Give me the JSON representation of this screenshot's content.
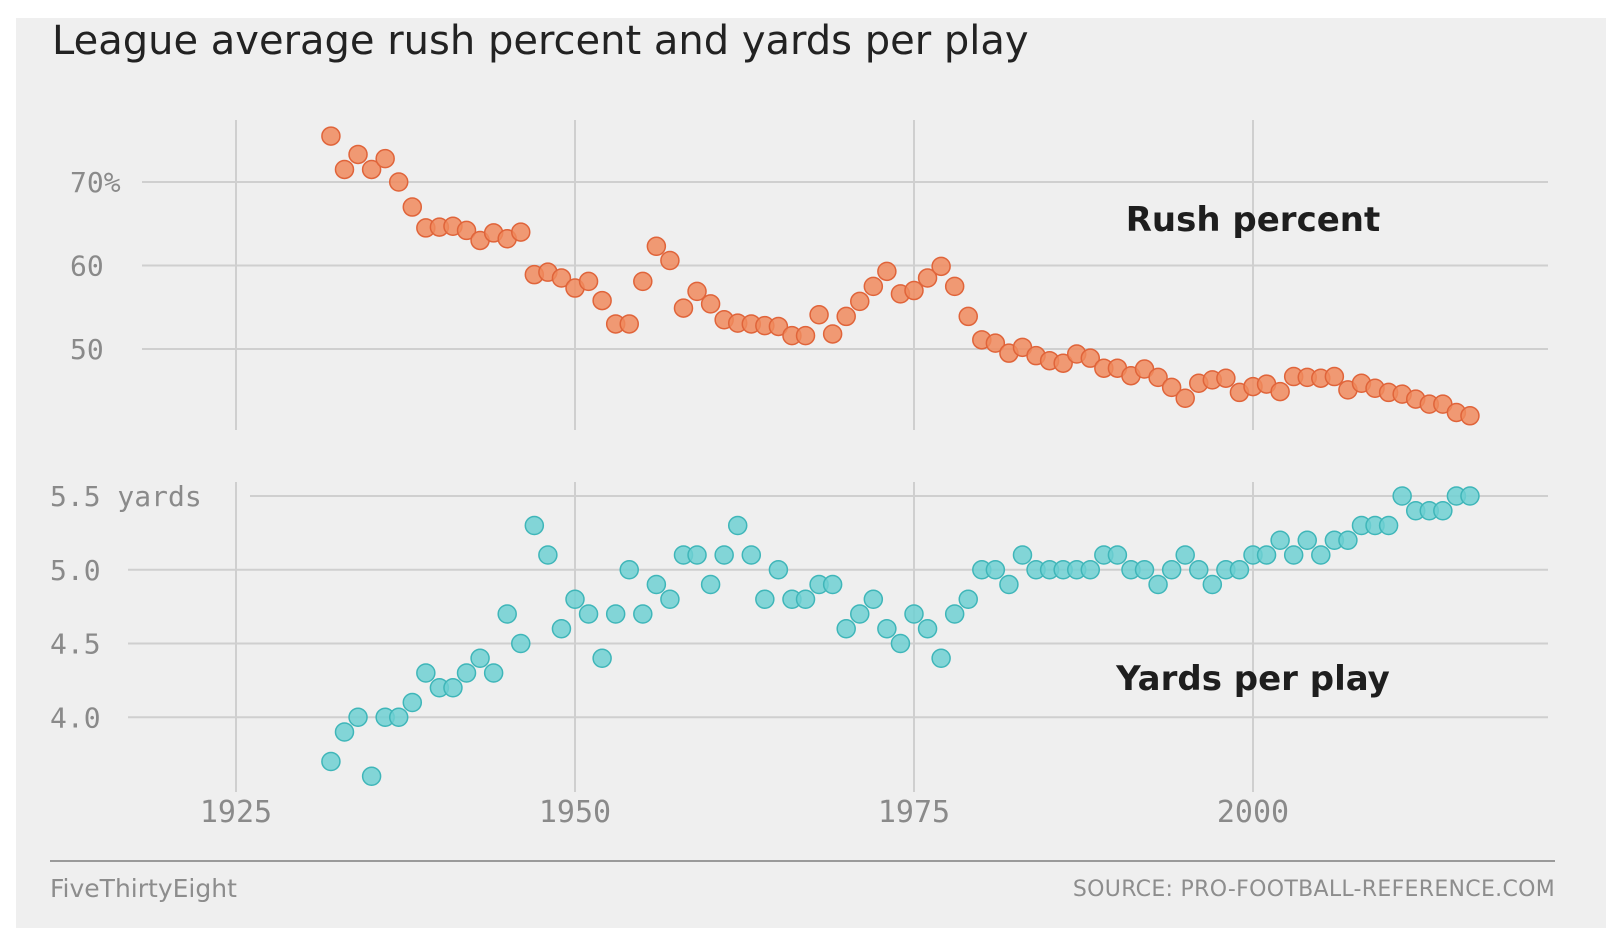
{
  "title": "League average rush percent and yards per play",
  "footer": {
    "brand": "FiveThirtyEight",
    "source": "SOURCE: PRO-FOOTBALL-REFERENCE.COM"
  },
  "colors": {
    "rush": "#f08a5d",
    "rush_stroke": "#e0643a",
    "yards": "#6fd0d2",
    "yards_stroke": "#3fb6b9",
    "grid": "#cfcfcf",
    "background": "#efefef"
  },
  "chart_data": [
    {
      "type": "scatter",
      "series_label": "Rush percent",
      "y_tick_labels": [
        "70%",
        "60",
        "50"
      ],
      "y_ticks": [
        70,
        60,
        50
      ],
      "ylim": [
        40.5,
        78
      ],
      "xlim": [
        1912,
        2022
      ],
      "x_ticks": [
        1925,
        1950,
        1975,
        2000
      ],
      "grid": true,
      "x": [
        1932,
        1933,
        1934,
        1935,
        1936,
        1937,
        1938,
        1939,
        1940,
        1941,
        1942,
        1943,
        1944,
        1945,
        1946,
        1947,
        1948,
        1949,
        1950,
        1951,
        1952,
        1953,
        1954,
        1955,
        1956,
        1957,
        1958,
        1959,
        1960,
        1961,
        1962,
        1963,
        1964,
        1965,
        1966,
        1967,
        1968,
        1969,
        1970,
        1971,
        1972,
        1973,
        1974,
        1975,
        1976,
        1977,
        1978,
        1979,
        1980,
        1981,
        1982,
        1983,
        1984,
        1985,
        1986,
        1987,
        1988,
        1989,
        1990,
        1991,
        1992,
        1993,
        1994,
        1995,
        1996,
        1997,
        1998,
        1999,
        2000,
        2001,
        2002,
        2003,
        2004,
        2005,
        2006,
        2007,
        2008,
        2009,
        2010,
        2011,
        2012,
        2013,
        2014,
        2015,
        2016
      ],
      "y": [
        75.5,
        71.5,
        73.3,
        71.5,
        72.8,
        70.0,
        67.0,
        64.5,
        64.6,
        64.7,
        64.2,
        63.0,
        63.9,
        63.2,
        64.0,
        58.9,
        59.2,
        58.5,
        57.3,
        58.1,
        55.8,
        53.0,
        53.0,
        58.1,
        62.3,
        60.6,
        54.9,
        56.9,
        55.4,
        53.5,
        53.1,
        53.0,
        52.8,
        52.7,
        51.6,
        51.6,
        54.1,
        51.8,
        53.9,
        55.7,
        57.5,
        59.3,
        56.6,
        57.0,
        58.5,
        59.9,
        57.5,
        53.9,
        51.1,
        50.7,
        49.5,
        50.2,
        49.2,
        48.6,
        48.3,
        49.4,
        48.9,
        47.7,
        47.7,
        46.8,
        47.6,
        46.6,
        45.4,
        44.1,
        45.9,
        46.3,
        46.5,
        44.8,
        45.5,
        45.8,
        44.9,
        46.7,
        46.6,
        46.5,
        46.7,
        45.1,
        45.9,
        45.3,
        44.8,
        44.6,
        44.0,
        43.4,
        43.4,
        42.4,
        42.0
      ]
    },
    {
      "type": "scatter",
      "series_label": "Yards per play",
      "y_tick_labels": [
        "5.5 yards",
        "5.0",
        "4.5",
        "4.0"
      ],
      "y_ticks": [
        5.5,
        5.0,
        4.5,
        4.0
      ],
      "ylim": [
        3.45,
        5.6
      ],
      "xlim": [
        1912,
        2022
      ],
      "x_ticks": [
        1925,
        1950,
        1975,
        2000
      ],
      "grid": true,
      "x": [
        1932,
        1933,
        1934,
        1935,
        1936,
        1937,
        1938,
        1939,
        1940,
        1941,
        1942,
        1943,
        1944,
        1945,
        1946,
        1947,
        1948,
        1949,
        1950,
        1951,
        1952,
        1953,
        1954,
        1955,
        1956,
        1957,
        1958,
        1959,
        1960,
        1961,
        1962,
        1963,
        1964,
        1965,
        1966,
        1967,
        1968,
        1969,
        1970,
        1971,
        1972,
        1973,
        1974,
        1975,
        1976,
        1977,
        1978,
        1979,
        1980,
        1981,
        1982,
        1983,
        1984,
        1985,
        1986,
        1987,
        1988,
        1989,
        1990,
        1991,
        1992,
        1993,
        1994,
        1995,
        1996,
        1997,
        1998,
        1999,
        2000,
        2001,
        2002,
        2003,
        2004,
        2005,
        2006,
        2007,
        2008,
        2009,
        2010,
        2011,
        2012,
        2013,
        2014,
        2015,
        2016
      ],
      "y": [
        3.7,
        3.9,
        4.0,
        3.6,
        4.0,
        4.0,
        4.1,
        4.3,
        4.2,
        4.2,
        4.3,
        4.4,
        4.3,
        4.7,
        4.5,
        5.3,
        5.1,
        4.6,
        4.8,
        4.7,
        4.4,
        4.7,
        5.0,
        4.7,
        4.9,
        4.8,
        5.1,
        5.1,
        4.9,
        5.1,
        5.3,
        5.1,
        4.8,
        5.0,
        4.8,
        4.8,
        4.9,
        4.9,
        4.6,
        4.7,
        4.8,
        4.6,
        4.5,
        4.7,
        4.6,
        4.4,
        4.7,
        4.8,
        5.0,
        5.0,
        4.9,
        5.1,
        5.0,
        5.0,
        5.0,
        5.0,
        5.0,
        5.1,
        5.1,
        5.0,
        5.0,
        4.9,
        5.0,
        5.1,
        5.0,
        4.9,
        5.0,
        5.0,
        5.1,
        5.1,
        5.2,
        5.1,
        5.2,
        5.1,
        5.2,
        5.2,
        5.3,
        5.3,
        5.3,
        5.5,
        5.4,
        5.4,
        5.4,
        5.5,
        5.5
      ]
    }
  ]
}
